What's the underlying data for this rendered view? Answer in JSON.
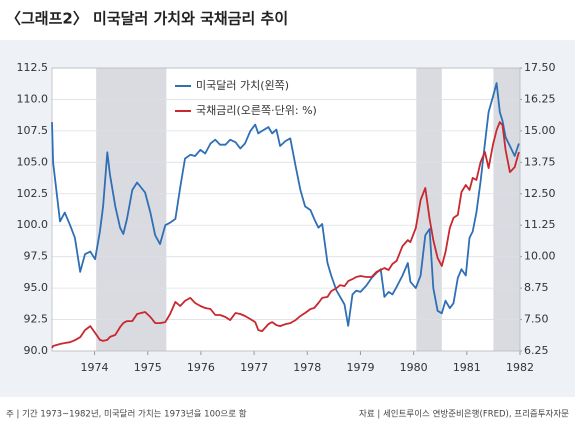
{
  "chart_data": {
    "type": "line",
    "title": "〈그래프2〉 미국달러 가치와 국채금리 추이",
    "note": "주 | 기간 1973~1982년, 미국달러 가치는 1973년을 100으로 함",
    "source": "자료 | 세인트루이스 연방준비은행(FRED), 프리즘투자자문",
    "x": [
      1973.2,
      1973.22,
      1973.35,
      1973.44,
      1973.54,
      1973.63,
      1973.73,
      1973.82,
      1973.92,
      1974.01,
      1974.1,
      1974.16,
      1974.24,
      1974.29,
      1974.39,
      1974.48,
      1974.54,
      1974.61,
      1974.71,
      1974.8,
      1974.95,
      1975.05,
      1975.14,
      1975.23,
      1975.33,
      1975.42,
      1975.52,
      1975.61,
      1975.7,
      1975.8,
      1975.89,
      1975.99,
      1976.08,
      1976.18,
      1976.27,
      1976.36,
      1976.46,
      1976.55,
      1976.65,
      1976.74,
      1976.83,
      1976.93,
      1977.02,
      1977.08,
      1977.15,
      1977.27,
      1977.34,
      1977.42,
      1977.49,
      1977.59,
      1977.68,
      1977.78,
      1977.87,
      1977.96,
      1978.06,
      1978.13,
      1978.21,
      1978.28,
      1978.38,
      1978.45,
      1978.55,
      1978.62,
      1978.7,
      1978.77,
      1978.85,
      1978.92,
      1979.0,
      1979.11,
      1979.21,
      1979.3,
      1979.38,
      1979.45,
      1979.53,
      1979.6,
      1979.68,
      1979.79,
      1979.89,
      1979.94,
      1980.04,
      1980.13,
      1980.22,
      1980.3,
      1980.37,
      1980.45,
      1980.53,
      1980.6,
      1980.68,
      1980.75,
      1980.83,
      1980.9,
      1980.98,
      1981.05,
      1981.11,
      1981.18,
      1981.26,
      1981.34,
      1981.41,
      1981.49,
      1981.56,
      1981.62,
      1981.67,
      1981.73,
      1981.81,
      1981.9,
      1981.98
    ],
    "series": [
      {
        "name": "미국달러 가치(왼쪽)",
        "color": "#2f6fb5",
        "axis": "y",
        "values": [
          108.2,
          105,
          100.3,
          101,
          100,
          99,
          96.3,
          97.7,
          97.9,
          97.3,
          99.5,
          101.5,
          105.8,
          104,
          101.5,
          99.8,
          99.3,
          100.5,
          102.8,
          103.4,
          102.6,
          101,
          99.2,
          98.5,
          100,
          100.2,
          100.5,
          103,
          105.3,
          105.6,
          105.5,
          106,
          105.7,
          106.5,
          106.8,
          106.4,
          106.4,
          106.8,
          106.6,
          106.1,
          106.5,
          107.5,
          108,
          107.3,
          107.5,
          107.8,
          107.3,
          107.6,
          106.3,
          106.7,
          106.9,
          104.7,
          102.8,
          101.5,
          101.2,
          100.5,
          99.8,
          100.1,
          97,
          96,
          94.8,
          94.3,
          93.7,
          92,
          94.5,
          94.8,
          94.7,
          95.2,
          95.8,
          96.2,
          96.5,
          94.3,
          94.7,
          94.5,
          95.1,
          96,
          97,
          95.5,
          95,
          96,
          99.2,
          99.7,
          95,
          93.2,
          93,
          94,
          93.4,
          93.8,
          95.8,
          96.5,
          96,
          99,
          99.5,
          101,
          103.5,
          106.5,
          109,
          110.2,
          111.3,
          109,
          108.3,
          107,
          106.3,
          105.5,
          106.5
        ]
      },
      {
        "name": "국채금리(오른쪽·단위: %)",
        "color": "#c8282e",
        "axis": "y2",
        "values": [
          6.37,
          6.45,
          6.53,
          6.57,
          6.6,
          6.68,
          6.8,
          7.08,
          7.24,
          6.97,
          6.69,
          6.65,
          6.69,
          6.81,
          6.89,
          7.2,
          7.36,
          7.44,
          7.44,
          7.72,
          7.8,
          7.6,
          7.36,
          7.36,
          7.4,
          7.72,
          8.2,
          8.04,
          8.24,
          8.36,
          8.16,
          8.04,
          7.96,
          7.92,
          7.68,
          7.68,
          7.6,
          7.48,
          7.76,
          7.72,
          7.64,
          7.52,
          7.4,
          7.08,
          7.04,
          7.32,
          7.4,
          7.28,
          7.24,
          7.32,
          7.36,
          7.48,
          7.64,
          7.76,
          7.92,
          7.96,
          8.16,
          8.36,
          8.4,
          8.63,
          8.75,
          8.87,
          8.83,
          9.03,
          9.11,
          9.19,
          9.23,
          9.19,
          9.19,
          9.39,
          9.47,
          9.55,
          9.47,
          9.71,
          9.83,
          10.42,
          10.66,
          10.58,
          11.14,
          12.25,
          12.73,
          11.5,
          10.66,
          9.95,
          9.63,
          10.18,
          11.14,
          11.54,
          11.66,
          12.57,
          12.85,
          12.65,
          13.13,
          13.05,
          13.76,
          14.16,
          13.52,
          14.44,
          15.03,
          15.35,
          15.23,
          14.24,
          13.36,
          13.56,
          14.16
        ]
      }
    ],
    "shaded_periods": [
      [
        1974.03,
        1975.35
      ],
      [
        1980.05,
        1980.53
      ],
      [
        1981.5,
        1982.0
      ]
    ],
    "xlim": [
      1973.2,
      1982.0
    ],
    "xticks": [
      1974,
      1975,
      1976,
      1977,
      1978,
      1979,
      1980,
      1981,
      1982
    ],
    "ylim": [
      90,
      112.5
    ],
    "yticks": [
      {
        "value": 90,
        "label": "90.0"
      },
      92.5,
      {
        "value": 95,
        "label": "95.0"
      },
      97.5,
      {
        "value": 100,
        "label": "100.0"
      },
      102.5,
      {
        "value": 105,
        "label": "105.0"
      },
      107.5,
      {
        "value": 110,
        "label": "110.0"
      },
      112.5
    ],
    "y2lim": [
      6.25,
      17.5
    ],
    "y2ticks": [
      6.25,
      {
        "value": 7.5,
        "label": "7.50"
      },
      8.75,
      {
        "value": 10,
        "label": "10.00"
      },
      11.25,
      {
        "value": 12.5,
        "label": "12.50"
      },
      13.75,
      {
        "value": 15,
        "label": "15.00"
      },
      16.25,
      {
        "value": 17.5,
        "label": "17.50"
      }
    ],
    "grid": true
  }
}
